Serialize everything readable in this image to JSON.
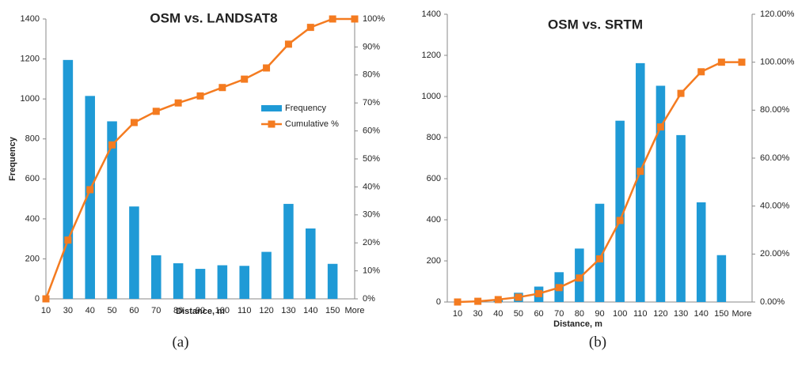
{
  "chart_data": [
    {
      "type": "bar",
      "title": "OSM vs. LANDSAT8",
      "x_label": "Distance, m",
      "y_label": "Frequency",
      "caption": "(a)",
      "categories": [
        "10",
        "30",
        "40",
        "50",
        "60",
        "70",
        "80",
        "90",
        "100",
        "110",
        "120",
        "130",
        "140",
        "150",
        "More"
      ],
      "series": [
        {
          "name": "Frequency",
          "color": "#1f9ad6",
          "values": [
            0,
            1195,
            1015,
            888,
            462,
            218,
            178,
            150,
            168,
            165,
            235,
            475,
            352,
            175,
            0
          ]
        },
        {
          "name": "Cumulative %",
          "type": "line",
          "axis": "y2",
          "color": "#f47b20",
          "values": [
            0,
            21,
            39,
            55,
            63,
            67,
            70,
            72.5,
            75.5,
            78.5,
            82.5,
            91,
            97,
            100,
            100
          ]
        }
      ],
      "ylim": [
        0,
        1400
      ],
      "yticks": [
        0,
        200,
        400,
        600,
        800,
        1000,
        1200,
        1400
      ],
      "y2lim": [
        0,
        100
      ],
      "y2ticks": [
        {
          "value": 0,
          "label": "0%"
        },
        {
          "value": 10,
          "label": "10%"
        },
        {
          "value": 20,
          "label": "20%"
        },
        {
          "value": 30,
          "label": "30%"
        },
        {
          "value": 40,
          "label": "40%"
        },
        {
          "value": 50,
          "label": "50%"
        },
        {
          "value": 60,
          "label": "60%"
        },
        {
          "value": 70,
          "label": "70%"
        },
        {
          "value": 80,
          "label": "80%"
        },
        {
          "value": 90,
          "label": "90%"
        },
        {
          "value": 100,
          "label": "100%"
        }
      ],
      "legend": "right"
    },
    {
      "type": "bar",
      "title": "OSM vs. SRTM",
      "x_label": "Distance, m",
      "caption": "(b)",
      "categories": [
        "10",
        "30",
        "40",
        "50",
        "60",
        "70",
        "80",
        "90",
        "100",
        "110",
        "120",
        "130",
        "140",
        "150",
        "More"
      ],
      "series": [
        {
          "name": "Frequency",
          "color": "#1f9ad6",
          "values": [
            0,
            5,
            10,
            45,
            75,
            145,
            260,
            478,
            882,
            1162,
            1052,
            812,
            485,
            228,
            0
          ]
        },
        {
          "name": "Cumulative %",
          "type": "line",
          "axis": "y2",
          "color": "#f47b20",
          "values": [
            0,
            0.3,
            1,
            2,
            3.5,
            6,
            10,
            18,
            34,
            54.5,
            73,
            87,
            96,
            100,
            100
          ]
        }
      ],
      "ylim": [
        0,
        1400
      ],
      "yticks": [
        0,
        200,
        400,
        600,
        800,
        1000,
        1200,
        1400
      ],
      "y2lim": [
        0,
        120
      ],
      "y2ticks": [
        {
          "value": 0,
          "label": "0.00%"
        },
        {
          "value": 20,
          "label": "20.00%"
        },
        {
          "value": 40,
          "label": "40.00%"
        },
        {
          "value": 60,
          "label": "60.00%"
        },
        {
          "value": 80,
          "label": "80.00%"
        },
        {
          "value": 100,
          "label": "100.00%"
        },
        {
          "value": 120,
          "label": "120.00%"
        }
      ]
    }
  ]
}
